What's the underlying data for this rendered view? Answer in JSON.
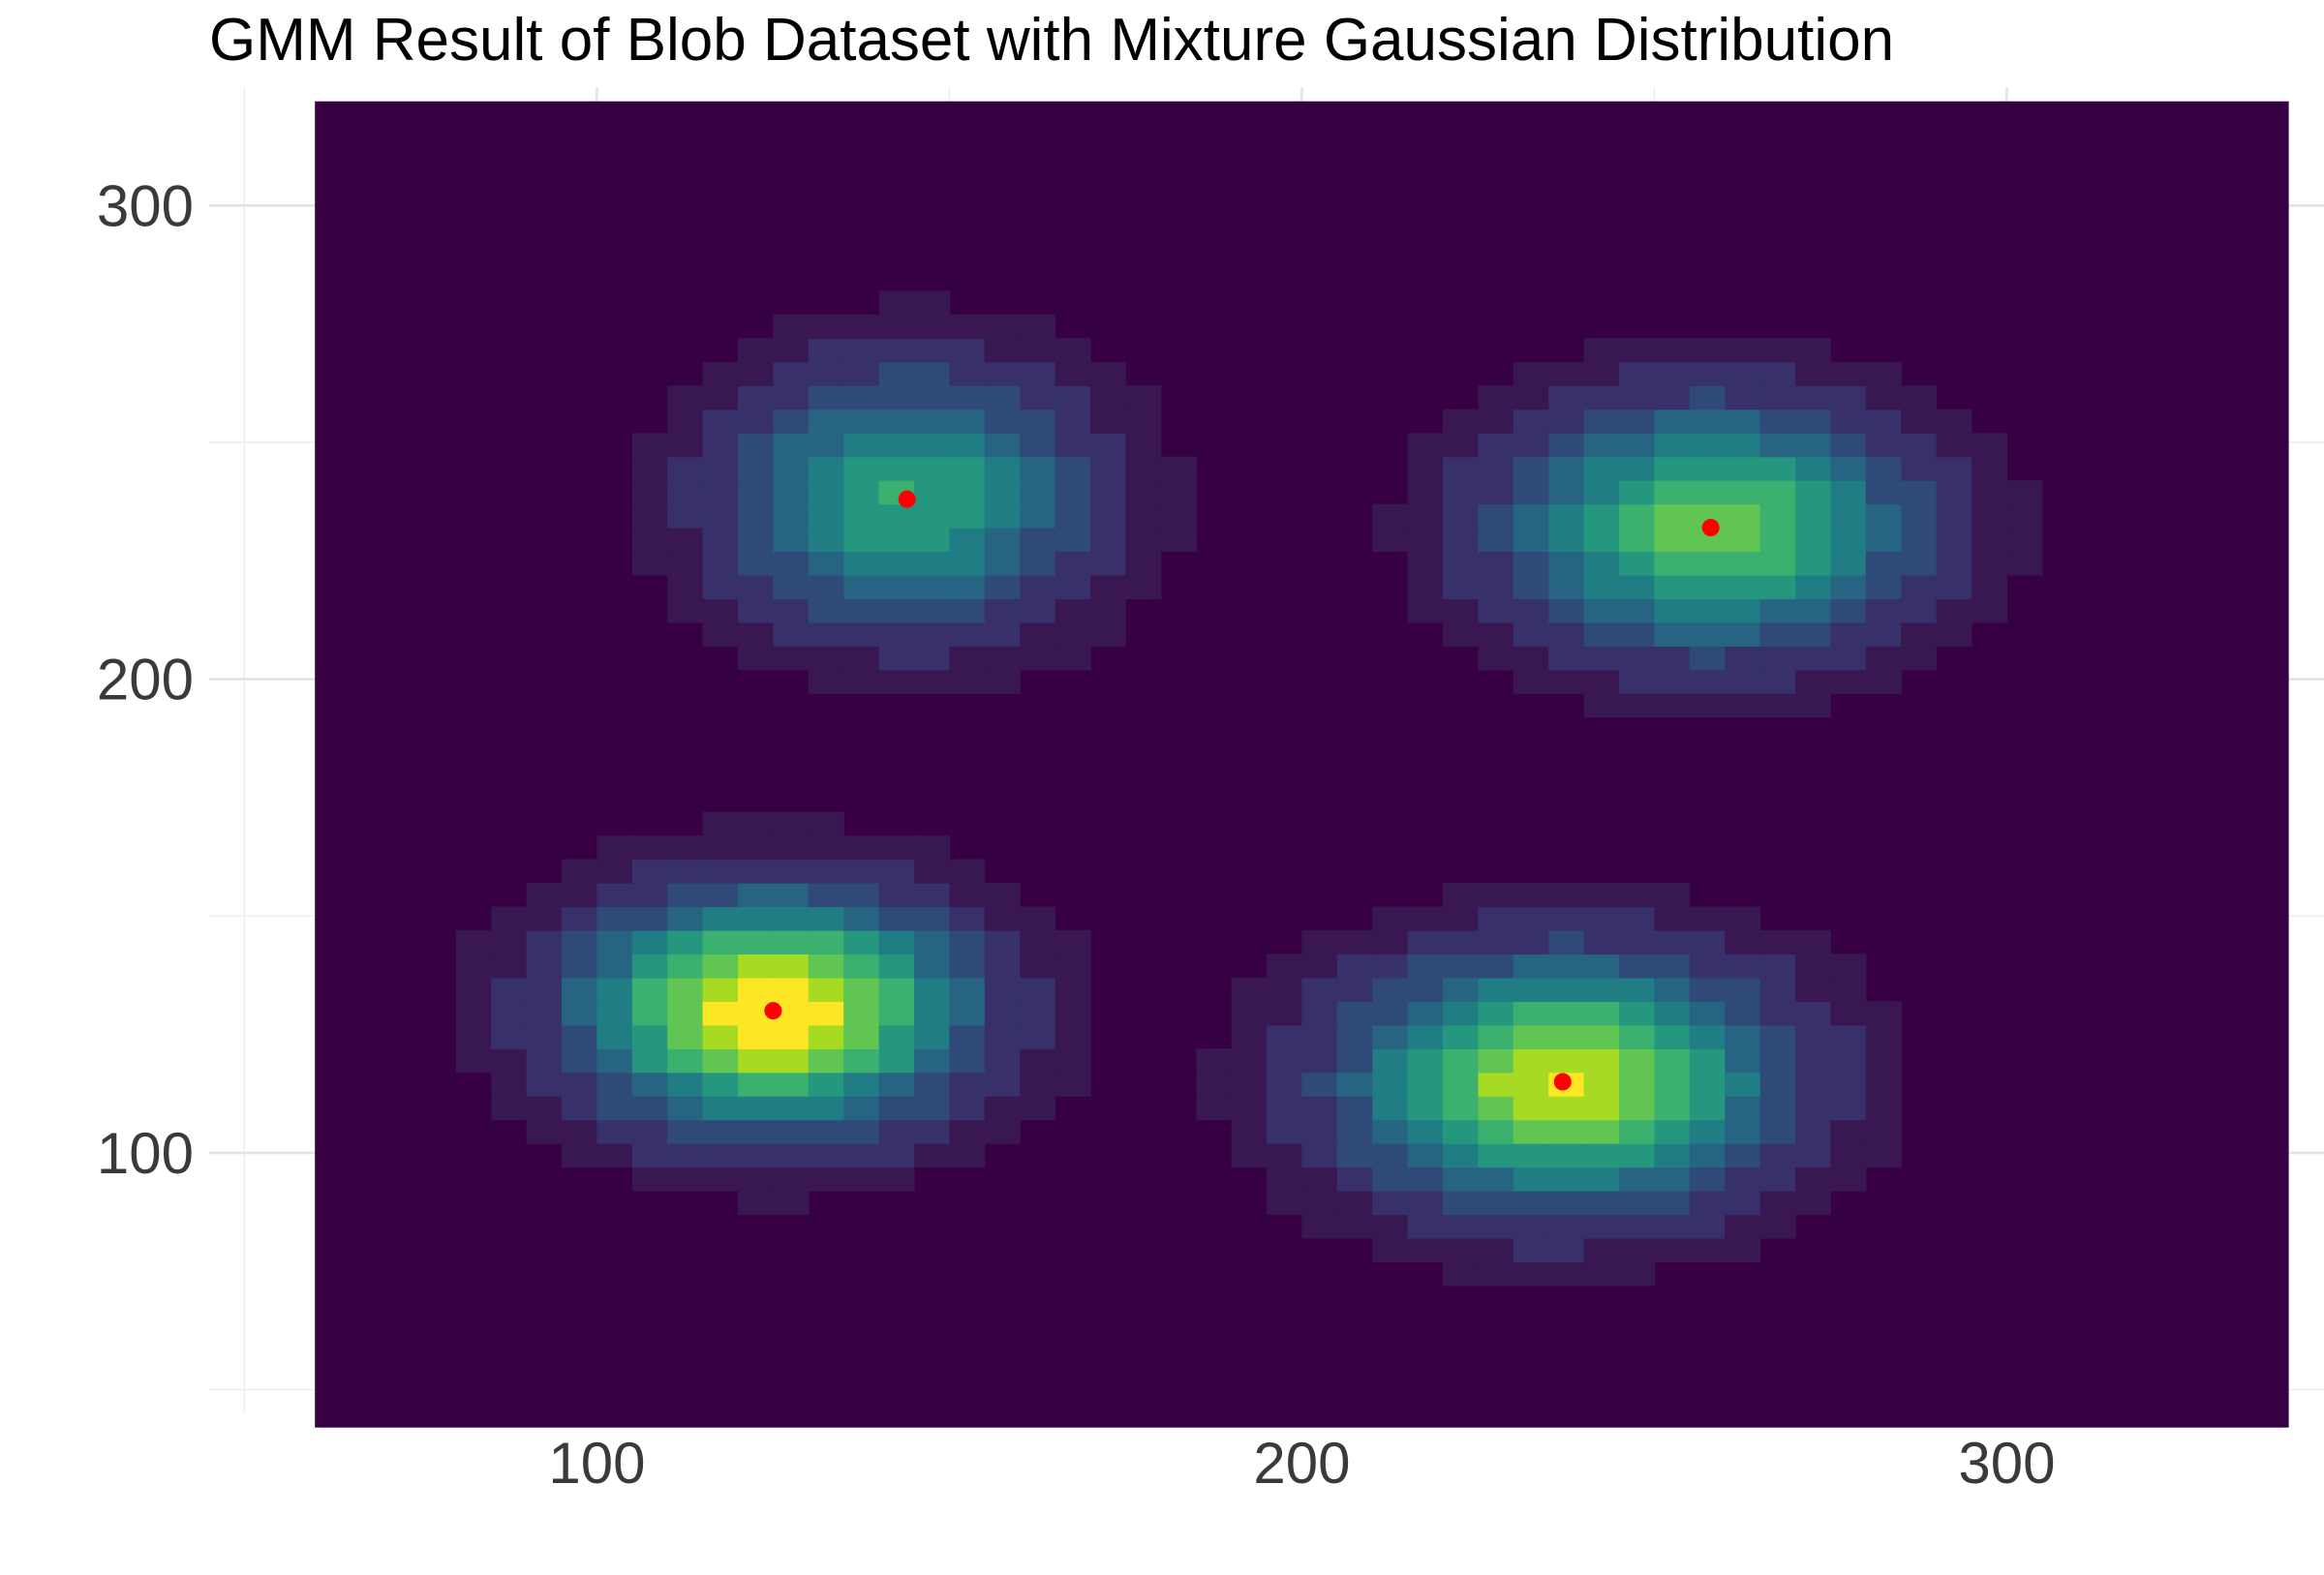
{
  "chart_data": {
    "type": "contour",
    "title": "GMM Result of Blob Dataset with Mixture Gaussian Distribution",
    "xlabel": "",
    "ylabel": "",
    "xlim": [
      45,
      345
    ],
    "ylim": [
      45,
      325
    ],
    "x_ticks": [
      100,
      200,
      300
    ],
    "y_ticks": [
      100,
      200,
      300
    ],
    "x_minor": [
      50,
      150,
      250,
      350
    ],
    "y_minor": [
      50,
      150,
      250
    ],
    "grid": true,
    "legend": "none",
    "density_domain": {
      "x": [
        60,
        340
      ],
      "y": [
        42,
        322
      ]
    },
    "contour_levels": 10,
    "components": [
      {
        "mean": [
          125,
          130
        ],
        "sd": [
          18,
          16
        ],
        "weight": 1.0
      },
      {
        "mean": [
          237,
          115
        ],
        "sd": [
          20,
          17
        ],
        "weight": 0.9
      },
      {
        "mean": [
          144,
          238
        ],
        "sd": [
          17,
          18
        ],
        "weight": 0.6
      },
      {
        "mean": [
          258,
          232
        ],
        "sd": [
          19,
          17
        ],
        "weight": 0.75
      }
    ],
    "centers": [
      {
        "x": 125,
        "y": 130
      },
      {
        "x": 237,
        "y": 115
      },
      {
        "x": 144,
        "y": 238
      },
      {
        "x": 258,
        "y": 232
      }
    ],
    "colors": {
      "palette": [
        "#360043",
        "#391751",
        "#37306a",
        "#2f4a79",
        "#266481",
        "#1f7d83",
        "#24977e",
        "#3bb06f",
        "#60c552",
        "#a7da22",
        "#fde624"
      ],
      "center_marker": "#ff0000",
      "grid": "#e3e3e3"
    }
  }
}
